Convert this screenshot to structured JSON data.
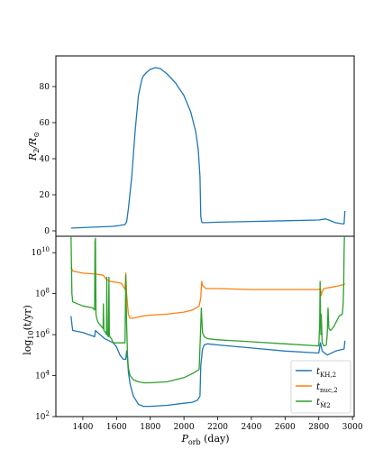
{
  "chart_data": [
    {
      "type": "line",
      "ylabel": "R_2/R_⊙",
      "ylabel_main": "R",
      "ylabel_sub1": "2",
      "ylabel_mid": "/R",
      "ylabel_sub2": "⊙",
      "xlim": [
        1240,
        3010
      ],
      "ylim": [
        -3,
        97
      ],
      "yticks": [
        0,
        20,
        40,
        60,
        80
      ],
      "ytick_labels": [
        "0",
        "20",
        "40",
        "60",
        "80"
      ],
      "series": [
        {
          "color": "#1f77b4",
          "x": [
            1330,
            1400,
            1500,
            1580,
            1620,
            1650,
            1660,
            1670,
            1690,
            1710,
            1730,
            1750,
            1760,
            1780,
            1800,
            1830,
            1860,
            1900,
            1950,
            2000,
            2040,
            2070,
            2085,
            2095,
            2100,
            2105,
            2110,
            2200,
            2400,
            2600,
            2800,
            2840,
            2860,
            2900,
            2945,
            2950,
            2955
          ],
          "y": [
            1.5,
            1.8,
            2.2,
            2.5,
            3.0,
            3.5,
            5,
            12,
            30,
            55,
            75,
            84,
            86,
            88,
            89.5,
            90.5,
            90,
            87,
            82,
            75,
            66,
            55,
            45,
            30,
            8,
            5,
            4.5,
            4.8,
            5.2,
            5.6,
            6.0,
            6.6,
            6.0,
            4.5,
            3.8,
            4,
            11
          ]
        }
      ]
    },
    {
      "type": "line",
      "xlabel": "P_orb (day)",
      "xlabel_main": "P",
      "xlabel_sub": "orb",
      "xlabel_unit": " (day)",
      "ylabel": "log_10(t/yr)",
      "ylabel_main": "log",
      "ylabel_sub": "10",
      "ylabel_rest": "(t/yr)",
      "xlim": [
        1240,
        3010
      ],
      "ylim": [
        2,
        10.8
      ],
      "log_scale": true,
      "yticks": [
        2,
        4,
        6,
        8,
        10
      ],
      "ytick_base": [
        "10",
        "10",
        "10",
        "10",
        "10"
      ],
      "ytick_exp": [
        "2",
        "4",
        "6",
        "8",
        "10"
      ],
      "xticks": [
        1400,
        1600,
        1800,
        2000,
        2200,
        2400,
        2600,
        2800,
        3000
      ],
      "xtick_labels": [
        "1400",
        "1600",
        "1800",
        "2000",
        "2200",
        "2400",
        "2600",
        "2800",
        "3000"
      ],
      "legend_position": "lower-right",
      "series": [
        {
          "name": "t_KH,2",
          "name_main": "t",
          "name_sub": "KH,2",
          "color": "#1f77b4",
          "x": [
            1330,
            1335,
            1340,
            1400,
            1470,
            1475,
            1530,
            1580,
            1600,
            1620,
            1640,
            1650,
            1655,
            1660,
            1665,
            1670,
            1680,
            1700,
            1730,
            1760,
            1800,
            1900,
            2000,
            2050,
            2080,
            2095,
            2100,
            2110,
            2120,
            2140,
            2200,
            2400,
            2600,
            2800,
            2810,
            2820,
            2850,
            2900,
            2950,
            2955
          ],
          "y": [
            6.9,
            6.5,
            6.2,
            6.1,
            5.9,
            6.2,
            5.8,
            5.6,
            5.4,
            5.0,
            4.8,
            4.8,
            4.8,
            5.2,
            4.8,
            4.2,
            3.6,
            3.0,
            2.6,
            2.5,
            2.5,
            2.55,
            2.65,
            2.7,
            2.8,
            3.0,
            4.5,
            5.3,
            5.5,
            5.55,
            5.5,
            5.35,
            5.2,
            5.1,
            5.6,
            5.2,
            5.0,
            5.2,
            5.3,
            5.7
          ]
        },
        {
          "name": "t_nuc,2",
          "name_main": "t",
          "name_sub": "nuc,2",
          "color": "#ff7f0e",
          "x": [
            1330,
            1335,
            1340,
            1400,
            1480,
            1520,
            1540,
            1560,
            1600,
            1630,
            1650,
            1655,
            1660,
            1670,
            1680,
            1700,
            1750,
            1800,
            1900,
            2000,
            2050,
            2090,
            2100,
            2105,
            2110,
            2130,
            2200,
            2400,
            2600,
            2800,
            2810,
            2815,
            2820,
            2830,
            2900,
            2950,
            2955
          ],
          "y": [
            9.3,
            9.2,
            9.1,
            9.0,
            8.95,
            8.9,
            8.7,
            8.6,
            8.55,
            8.5,
            8.2,
            9.0,
            8.0,
            7.0,
            6.8,
            6.8,
            6.9,
            6.95,
            7.0,
            7.1,
            7.2,
            7.4,
            7.8,
            8.6,
            8.4,
            8.25,
            8.25,
            8.2,
            8.2,
            8.2,
            8.25,
            7.9,
            8.1,
            8.25,
            8.35,
            8.45,
            8.5
          ]
        },
        {
          "name": "t_Ṁ2",
          "name_main": "t",
          "name_sub": "Ṁ2",
          "color": "#2ca02c",
          "x": [
            1330,
            1335,
            1340,
            1400,
            1460,
            1470,
            1472,
            1475,
            1478,
            1482,
            1490,
            1500,
            1510,
            1520,
            1522,
            1525,
            1535,
            1540,
            1542,
            1545,
            1552,
            1555,
            1557,
            1560,
            1570,
            1580,
            1600,
            1620,
            1640,
            1650,
            1655,
            1660,
            1665,
            1670,
            1680,
            1700,
            1730,
            1760,
            1800,
            1900,
            2000,
            2050,
            2090,
            2100,
            2103,
            2106,
            2110,
            2120,
            2140,
            2200,
            2400,
            2600,
            2800,
            2805,
            2808,
            2812,
            2815,
            2820,
            2830,
            2845,
            2850,
            2855,
            2860,
            2870,
            2890,
            2920,
            2940,
            2945,
            2948,
            2950,
            2952,
            2955
          ],
          "y": [
            10.8,
            8.0,
            7.6,
            7.4,
            7.3,
            7.2,
            10.5,
            10.7,
            7.0,
            6.8,
            6.6,
            6.5,
            6.4,
            6.3,
            7.5,
            6.2,
            6.1,
            6.0,
            8.8,
            6.0,
            5.9,
            8.8,
            6.0,
            5.9,
            5.8,
            5.6,
            5.6,
            5.6,
            5.6,
            5.6,
            8.9,
            6.5,
            5.0,
            4.4,
            4.0,
            3.8,
            3.7,
            3.65,
            3.65,
            3.7,
            3.9,
            4.1,
            4.3,
            6.5,
            7.3,
            6.8,
            6.1,
            5.9,
            5.8,
            5.75,
            5.65,
            5.55,
            5.45,
            6.5,
            8.6,
            6.0,
            7.0,
            5.6,
            5.45,
            5.5,
            6.0,
            7.3,
            6.3,
            6.2,
            6.4,
            6.9,
            7.0,
            7.5,
            8.5,
            10.0,
            10.8,
            10.8
          ]
        }
      ]
    }
  ]
}
